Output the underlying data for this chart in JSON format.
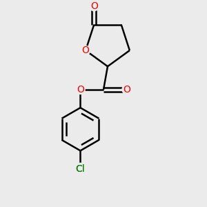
{
  "bg_color": "#ebebeb",
  "bond_color": "#000000",
  "o_color": "#ff0000",
  "cl_color": "#008000",
  "bond_width": 1.8,
  "figsize": [
    3.0,
    3.0
  ],
  "dpi": 100,
  "xlim": [
    -1.1,
    1.1
  ],
  "ylim": [
    -1.35,
    1.1
  ]
}
